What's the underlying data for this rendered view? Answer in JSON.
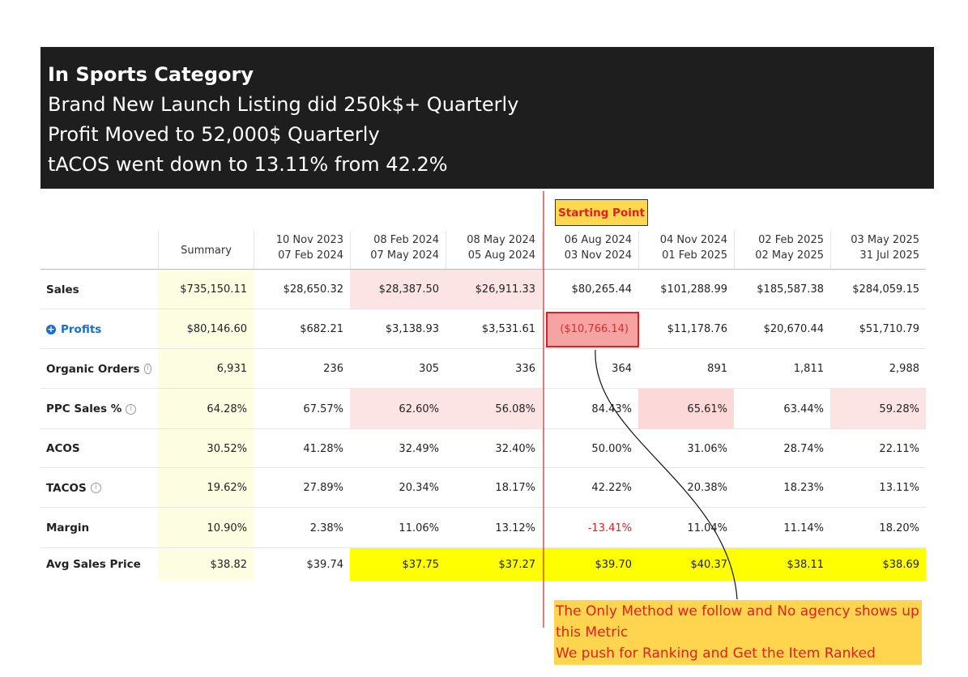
{
  "header": {
    "lines": [
      "In Sports Category",
      "Brand New Launch Listing did 250k$+ Quarterly",
      "Profit Moved to 52,000$ Quarterly",
      "tACOS went down to 13.11% from 42.2%"
    ]
  },
  "badge": "Starting Point",
  "table": {
    "columns": [
      [
        "Summary"
      ],
      [
        "10 Nov 2023",
        "07 Feb 2024"
      ],
      [
        "08 Feb 2024",
        "07 May 2024"
      ],
      [
        "08 May 2024",
        "05 Aug 2024"
      ],
      [
        "06 Aug 2024",
        "03 Nov 2024"
      ],
      [
        "04 Nov 2024",
        "01 Feb 2025"
      ],
      [
        "02 Feb 2025",
        "02 May 2025"
      ],
      [
        "03 May 2025",
        "31 Jul 2025"
      ]
    ],
    "rows": [
      {
        "label": "Sales",
        "cells": [
          "$735,150.11",
          "$28,650.32",
          "$28,387.50",
          "$26,911.33",
          "$80,265.44",
          "$101,288.99",
          "$185,587.38",
          "$284,059.15"
        ]
      },
      {
        "label": "Profits",
        "cells": [
          "$80,146.60",
          "$682.21",
          "$3,138.93",
          "$3,531.61",
          "($10,766.14)",
          "$11,178.76",
          "$20,670.44",
          "$51,710.79"
        ]
      },
      {
        "label": "Organic Orders",
        "cells": [
          "6,931",
          "236",
          "305",
          "336",
          "364",
          "891",
          "1,811",
          "2,988"
        ]
      },
      {
        "label": "PPC Sales %",
        "cells": [
          "64.28%",
          "67.57%",
          "62.60%",
          "56.08%",
          "84.43%",
          "65.61%",
          "63.44%",
          "59.28%"
        ]
      },
      {
        "label": "ACOS",
        "cells": [
          "30.52%",
          "41.28%",
          "32.49%",
          "32.40%",
          "50.00%",
          "31.06%",
          "28.74%",
          "22.11%"
        ]
      },
      {
        "label": "TACOS",
        "cells": [
          "19.62%",
          "27.89%",
          "20.34%",
          "18.17%",
          "42.22%",
          "20.38%",
          "18.23%",
          "13.11%"
        ]
      },
      {
        "label": "Margin",
        "cells": [
          "10.90%",
          "2.38%",
          "11.06%",
          "13.12%",
          "-13.41%",
          "11.04%",
          "11.14%",
          "18.20%"
        ]
      },
      {
        "label": "Avg Sales Price",
        "cells": [
          "$38.82",
          "$39.74",
          "$37.75",
          "$37.27",
          "$39.70",
          "$40.37",
          "$38.11",
          "$38.69"
        ]
      }
    ]
  },
  "callout": {
    "lines": [
      "The Only Method we follow and No agency shows up this Metric",
      "We push for Ranking and Get the Item Ranked"
    ]
  }
}
